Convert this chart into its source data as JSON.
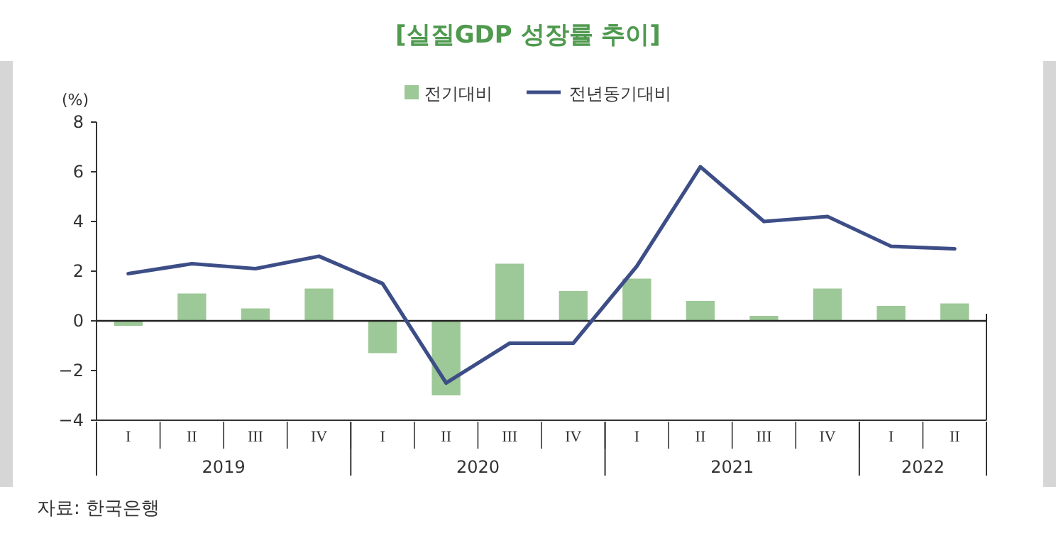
{
  "chart_data": {
    "type": "bar",
    "title": "[실질GDP 성장률 추이]",
    "ylabel": "(%)",
    "categories": [
      "I",
      "II",
      "III",
      "IV",
      "I",
      "II",
      "III",
      "IV",
      "I",
      "II",
      "III",
      "IV",
      "I",
      "II"
    ],
    "series": [
      {
        "name": "전기대비",
        "color": "#9dc897",
        "values": [
          -0.2,
          1.1,
          0.5,
          1.3,
          -1.3,
          -3.0,
          2.3,
          1.2,
          1.7,
          0.8,
          0.2,
          1.3,
          0.6,
          0.7
        ]
      },
      {
        "name": "전년동기대비",
        "type": "line",
        "color": "#3d4e87",
        "values": [
          1.9,
          2.3,
          2.1,
          2.6,
          1.5,
          -2.5,
          -0.9,
          -0.9,
          2.2,
          6.2,
          4.0,
          4.2,
          3.0,
          2.9
        ]
      }
    ],
    "ylim": [
      -4,
      8
    ],
    "yticks": [
      -4,
      -2,
      0,
      2,
      4,
      6,
      8
    ],
    "legend": "top right",
    "annotations": [
      "2019",
      "2020",
      "2021",
      "2022",
      "자료:  한국은행"
    ]
  }
}
